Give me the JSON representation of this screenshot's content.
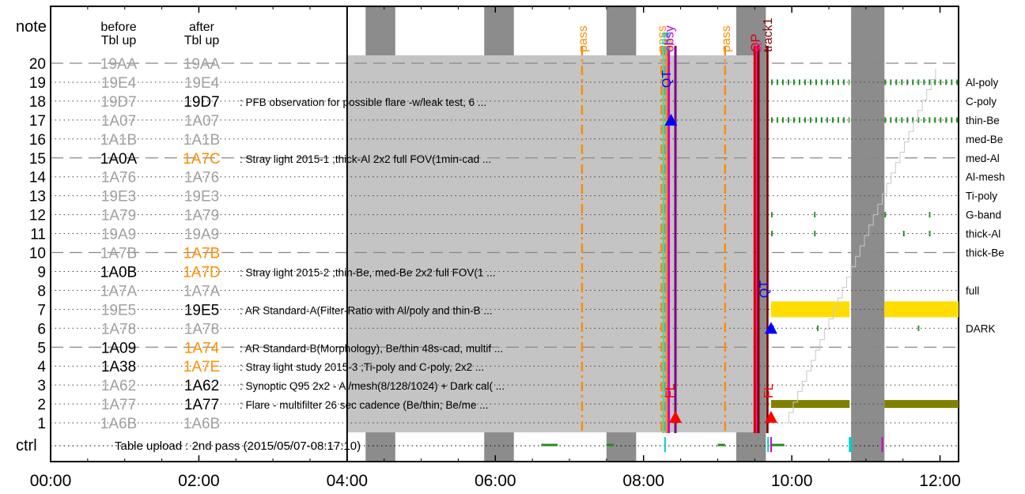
{
  "chart_data": {
    "type": "timeline",
    "header": {
      "note": "note",
      "before": [
        "before",
        "Tbl up"
      ],
      "after": [
        "after",
        "Tbl up"
      ]
    },
    "x_ticks": [
      "00:00",
      "02:00",
      "04:00",
      "06:00",
      "08:00",
      "10:00",
      "12:00"
    ],
    "x_range_hours": [
      0,
      12.25
    ],
    "ctrl_label": "ctrl",
    "ctrl_text": "Table upload : 2nd pass (2015/05/07-08:17:10)",
    "rows": [
      {
        "note": "20",
        "before": "19AA",
        "after": "19AA",
        "before_state": "old",
        "after_state": "old",
        "desc": ""
      },
      {
        "note": "19",
        "before": "19E4",
        "after": "19E4",
        "before_state": "old",
        "after_state": "old",
        "desc": ""
      },
      {
        "note": "18",
        "before": "19D7",
        "after": "19D7",
        "before_state": "old",
        "after_state": "active",
        "desc": ": PFB observation for possible flare -w/leak test, 6 ..."
      },
      {
        "note": "17",
        "before": "1A07",
        "after": "1A07",
        "before_state": "old",
        "after_state": "old",
        "desc": ""
      },
      {
        "note": "16",
        "before": "1A1B",
        "after": "1A1B",
        "before_state": "old",
        "after_state": "old",
        "desc": ""
      },
      {
        "note": "15",
        "before": "1A0A",
        "after": "1A7C",
        "before_state": "active",
        "after_state": "new",
        "desc": ": Stray light 2015-1 ;thick-Al 2x2 full FOV(1min-cad ..."
      },
      {
        "note": "14",
        "before": "1A76",
        "after": "1A76",
        "before_state": "old",
        "after_state": "old",
        "desc": ""
      },
      {
        "note": "13",
        "before": "19E3",
        "after": "19E3",
        "before_state": "old",
        "after_state": "old",
        "desc": ""
      },
      {
        "note": "12",
        "before": "1A79",
        "after": "1A79",
        "before_state": "old",
        "after_state": "old",
        "desc": ""
      },
      {
        "note": "11",
        "before": "19A9",
        "after": "19A9",
        "before_state": "old",
        "after_state": "old",
        "desc": ""
      },
      {
        "note": "10",
        "before": "1A7B",
        "after": "1A7B",
        "before_state": "old",
        "after_state": "new",
        "desc": ""
      },
      {
        "note": "9",
        "before": "1A0B",
        "after": "1A7D",
        "before_state": "active",
        "after_state": "new",
        "desc": ": Stray light 2015-2 ;thin-Be, med-Be 2x2 full FOV(1 ..."
      },
      {
        "note": "8",
        "before": "1A7A",
        "after": "1A7A",
        "before_state": "old",
        "after_state": "old",
        "desc": ""
      },
      {
        "note": "7",
        "before": "19E5",
        "after": "19E5",
        "before_state": "old",
        "after_state": "active",
        "desc": ": AR Standard-A(Filter-Ratio with Al/poly and thin-B ..."
      },
      {
        "note": "6",
        "before": "1A78",
        "after": "1A78",
        "before_state": "old",
        "after_state": "old",
        "desc": ""
      },
      {
        "note": "5",
        "before": "1A09",
        "after": "1A74",
        "before_state": "active",
        "after_state": "new",
        "desc": ": AR Standard-B(Morphology), Be/thin 48s-cad, multif ..."
      },
      {
        "note": "4",
        "before": "1A38",
        "after": "1A7E",
        "before_state": "active",
        "after_state": "new",
        "desc": ": Stray light study 2015-3 ;Ti-poly and C-poly, 2x2 ..."
      },
      {
        "note": "3",
        "before": "1A62",
        "after": "1A62",
        "before_state": "old",
        "after_state": "active",
        "desc": ": Synoptic Q95 2x2 - Al/mesh(8/128/1024) + Dark cal( ..."
      },
      {
        "note": "2",
        "before": "1A77",
        "after": "1A77",
        "before_state": "old",
        "after_state": "active",
        "desc": ": Flare - multifilter 26 sec cadence (Be/thin; Be/me ..."
      },
      {
        "note": "1",
        "before": "1A6B",
        "after": "1A6B",
        "before_state": "old",
        "after_state": "old",
        "desc": ""
      }
    ],
    "right_labels": [
      {
        "row": 19,
        "text": "Al-poly"
      },
      {
        "row": 18,
        "text": "C-poly"
      },
      {
        "row": 17,
        "text": "thin-Be"
      },
      {
        "row": 16,
        "text": "med-Be"
      },
      {
        "row": 15,
        "text": "med-Al"
      },
      {
        "row": 14,
        "text": "Al-mesh"
      },
      {
        "row": 13,
        "text": "Ti-poly"
      },
      {
        "row": 12,
        "text": "G-band"
      },
      {
        "row": 11,
        "text": "thick-Al"
      },
      {
        "row": 10,
        "text": "thick-Be"
      },
      {
        "row": 8,
        "text": "full"
      },
      {
        "row": 6,
        "text": "DARK"
      }
    ],
    "night_bands": [
      [
        4.25,
        4.65
      ],
      [
        5.85,
        6.25
      ],
      [
        7.5,
        7.9
      ],
      [
        9.25,
        9.65
      ],
      [
        10.8,
        11.25
      ]
    ],
    "shaded_region": {
      "start": 4.0,
      "end": 9.55
    },
    "events": [
      {
        "time": 7.17,
        "label": "pass",
        "color": "#ff8c00",
        "style": "dashdot"
      },
      {
        "time": 9.1,
        "label": "pass",
        "color": "#ff8c00",
        "style": "dashdot"
      },
      {
        "time": 8.24,
        "label": "pass",
        "color": "#ff8c00",
        "style": "dashdot"
      },
      {
        "time": 8.27,
        "label": "obs",
        "color": "#66cdaa",
        "style": "solid"
      },
      {
        "time": 8.29,
        "label": "saa",
        "color": "#00cdcd",
        "style": "dashdot"
      },
      {
        "time": 8.31,
        "label": "sp",
        "color": "#ff8c00",
        "style": "solid"
      },
      {
        "time": 8.34,
        "label": "obsy",
        "color": "#cc00cc",
        "style": "solid"
      },
      {
        "time": 8.43,
        "label": "",
        "color": "#800080",
        "style": "solid"
      },
      {
        "time": 9.5,
        "label": "OP",
        "color": "#cc0000",
        "style": "solid"
      },
      {
        "time": 9.53,
        "label": "st",
        "color": "#ff1493",
        "style": "solid"
      },
      {
        "time": 9.55,
        "label": "",
        "color": "#800000",
        "style": "solid"
      },
      {
        "time": 9.67,
        "label": "track1",
        "color": "#800000",
        "style": "solid"
      }
    ],
    "markers": [
      {
        "time": 8.37,
        "row": 17,
        "shape": "triangle",
        "color": "#0000ff"
      },
      {
        "time": 9.72,
        "row": 6,
        "shape": "triangle",
        "color": "#0000ff"
      },
      {
        "time": 8.43,
        "row": 1.3,
        "shape": "triangle",
        "color": "#ff0000"
      },
      {
        "time": 9.72,
        "row": 1.3,
        "shape": "triangle",
        "color": "#ff0000"
      }
    ],
    "marker_labels": [
      {
        "time": 8.3,
        "row": 18.7,
        "text": "QT",
        "color": "#0000ff"
      },
      {
        "time": 9.62,
        "row": 7.6,
        "text": "QT",
        "color": "#0000ff"
      },
      {
        "time": 8.35,
        "row": 2.3,
        "text": "FL",
        "color": "#ff0000"
      },
      {
        "time": 9.68,
        "row": 2.3,
        "text": "FL",
        "color": "#ff0000"
      }
    ],
    "bars": [
      {
        "row": 7,
        "start": 9.72,
        "end": 10.78,
        "color": "#ffdd00"
      },
      {
        "row": 7,
        "start": 11.25,
        "end": 12.25,
        "color": "#ffdd00"
      },
      {
        "row": 2,
        "start": 9.72,
        "end": 10.78,
        "color": "#808000"
      },
      {
        "row": 2,
        "start": 11.25,
        "end": 12.25,
        "color": "#808000"
      }
    ],
    "tick_rows": [
      {
        "row": 19,
        "segments": [
          [
            9.72,
            10.78
          ],
          [
            11.25,
            12.25
          ]
        ],
        "color": "#228b22"
      },
      {
        "row": 17,
        "segments": [
          [
            9.72,
            10.78
          ],
          [
            11.25,
            12.25
          ]
        ],
        "color": "#228b22"
      },
      {
        "row": 12,
        "segments": [
          [
            9.72,
            9.74
          ],
          [
            10.3,
            10.32
          ],
          [
            11.25,
            11.27
          ],
          [
            11.85,
            11.87
          ]
        ],
        "color": "#228b22"
      },
      {
        "row": 11,
        "segments": [
          [
            9.72,
            9.76
          ],
          [
            10.3,
            10.36
          ],
          [
            11.5,
            11.56
          ],
          [
            11.85,
            11.9
          ]
        ],
        "color": "#228b22"
      },
      {
        "row": 6,
        "segments": [
          [
            9.74,
            9.76
          ],
          [
            10.34,
            10.36
          ],
          [
            11.7,
            11.72
          ]
        ],
        "color": "#228b22"
      }
    ],
    "ctrl_segments": [
      {
        "start": 6.62,
        "end": 6.84,
        "color": "#228b22"
      },
      {
        "start": 7.5,
        "end": 7.6,
        "color": "#228b22"
      },
      {
        "start": 9.0,
        "end": 9.1,
        "color": "#228b22"
      },
      {
        "start": 9.72,
        "end": 9.9,
        "color": "#228b22"
      }
    ],
    "ctrl_ticks": [
      {
        "time": 8.29,
        "color": "#00cdcd"
      },
      {
        "time": 9.68,
        "color": "#00cdcd"
      },
      {
        "time": 9.72,
        "color": "#cc00cc"
      },
      {
        "time": 10.78,
        "color": "#00cdcd"
      },
      {
        "time": 10.8,
        "color": "#00cdcd"
      },
      {
        "time": 11.22,
        "color": "#cc00cc"
      }
    ],
    "staircase_color": "#c8c8c8"
  }
}
